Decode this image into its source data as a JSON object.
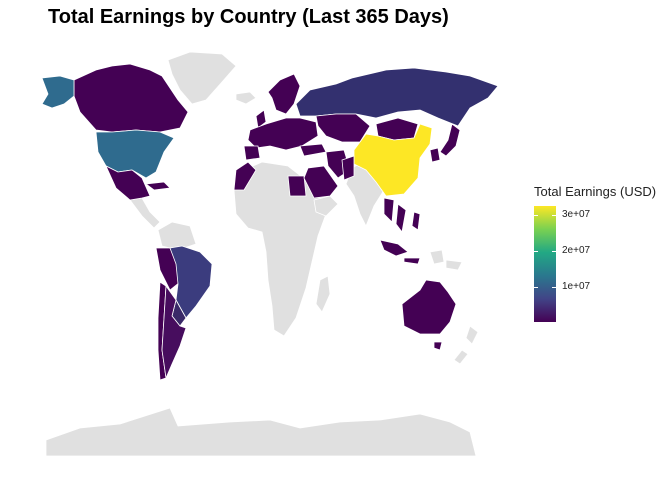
{
  "chart_data": {
    "type": "choropleth",
    "title": "Total Earnings by Country (Last 365 Days)",
    "legend": {
      "title": "Total Earnings (USD)",
      "ticks": [
        {
          "value": 30000000,
          "label": "3e+07"
        },
        {
          "value": 20000000,
          "label": "2e+07"
        },
        {
          "value": 10000000,
          "label": "1e+07"
        }
      ],
      "range": [
        0,
        32000000
      ],
      "position": "right",
      "palette": [
        "#440154",
        "#414487",
        "#2a788e",
        "#22a884",
        "#7ad151",
        "#fde725"
      ]
    },
    "no_data_color": "#e0e0e0",
    "grid": false,
    "countries": [
      {
        "name": "China",
        "value": 32000000
      },
      {
        "name": "United States",
        "value": 12000000
      },
      {
        "name": "Alaska (US)",
        "value": 12000000
      },
      {
        "name": "Russia",
        "value": 6000000
      },
      {
        "name": "Brazil",
        "value": 4500000
      },
      {
        "name": "Kazakhstan",
        "value": 500000
      },
      {
        "name": "Canada",
        "value": 800000
      },
      {
        "name": "Mexico",
        "value": 600000
      },
      {
        "name": "Australia",
        "value": 700000
      },
      {
        "name": "Argentina",
        "value": 900000
      },
      {
        "name": "Peru",
        "value": 800000
      },
      {
        "name": "Chile",
        "value": 300000
      },
      {
        "name": "Paraguay",
        "value": 1500000
      },
      {
        "name": "Greenland",
        "value": 0
      },
      {
        "name": "Africa (most)",
        "value": 0
      },
      {
        "name": "India",
        "value": 0
      },
      {
        "name": "Antarctica",
        "value": 0
      }
    ]
  }
}
